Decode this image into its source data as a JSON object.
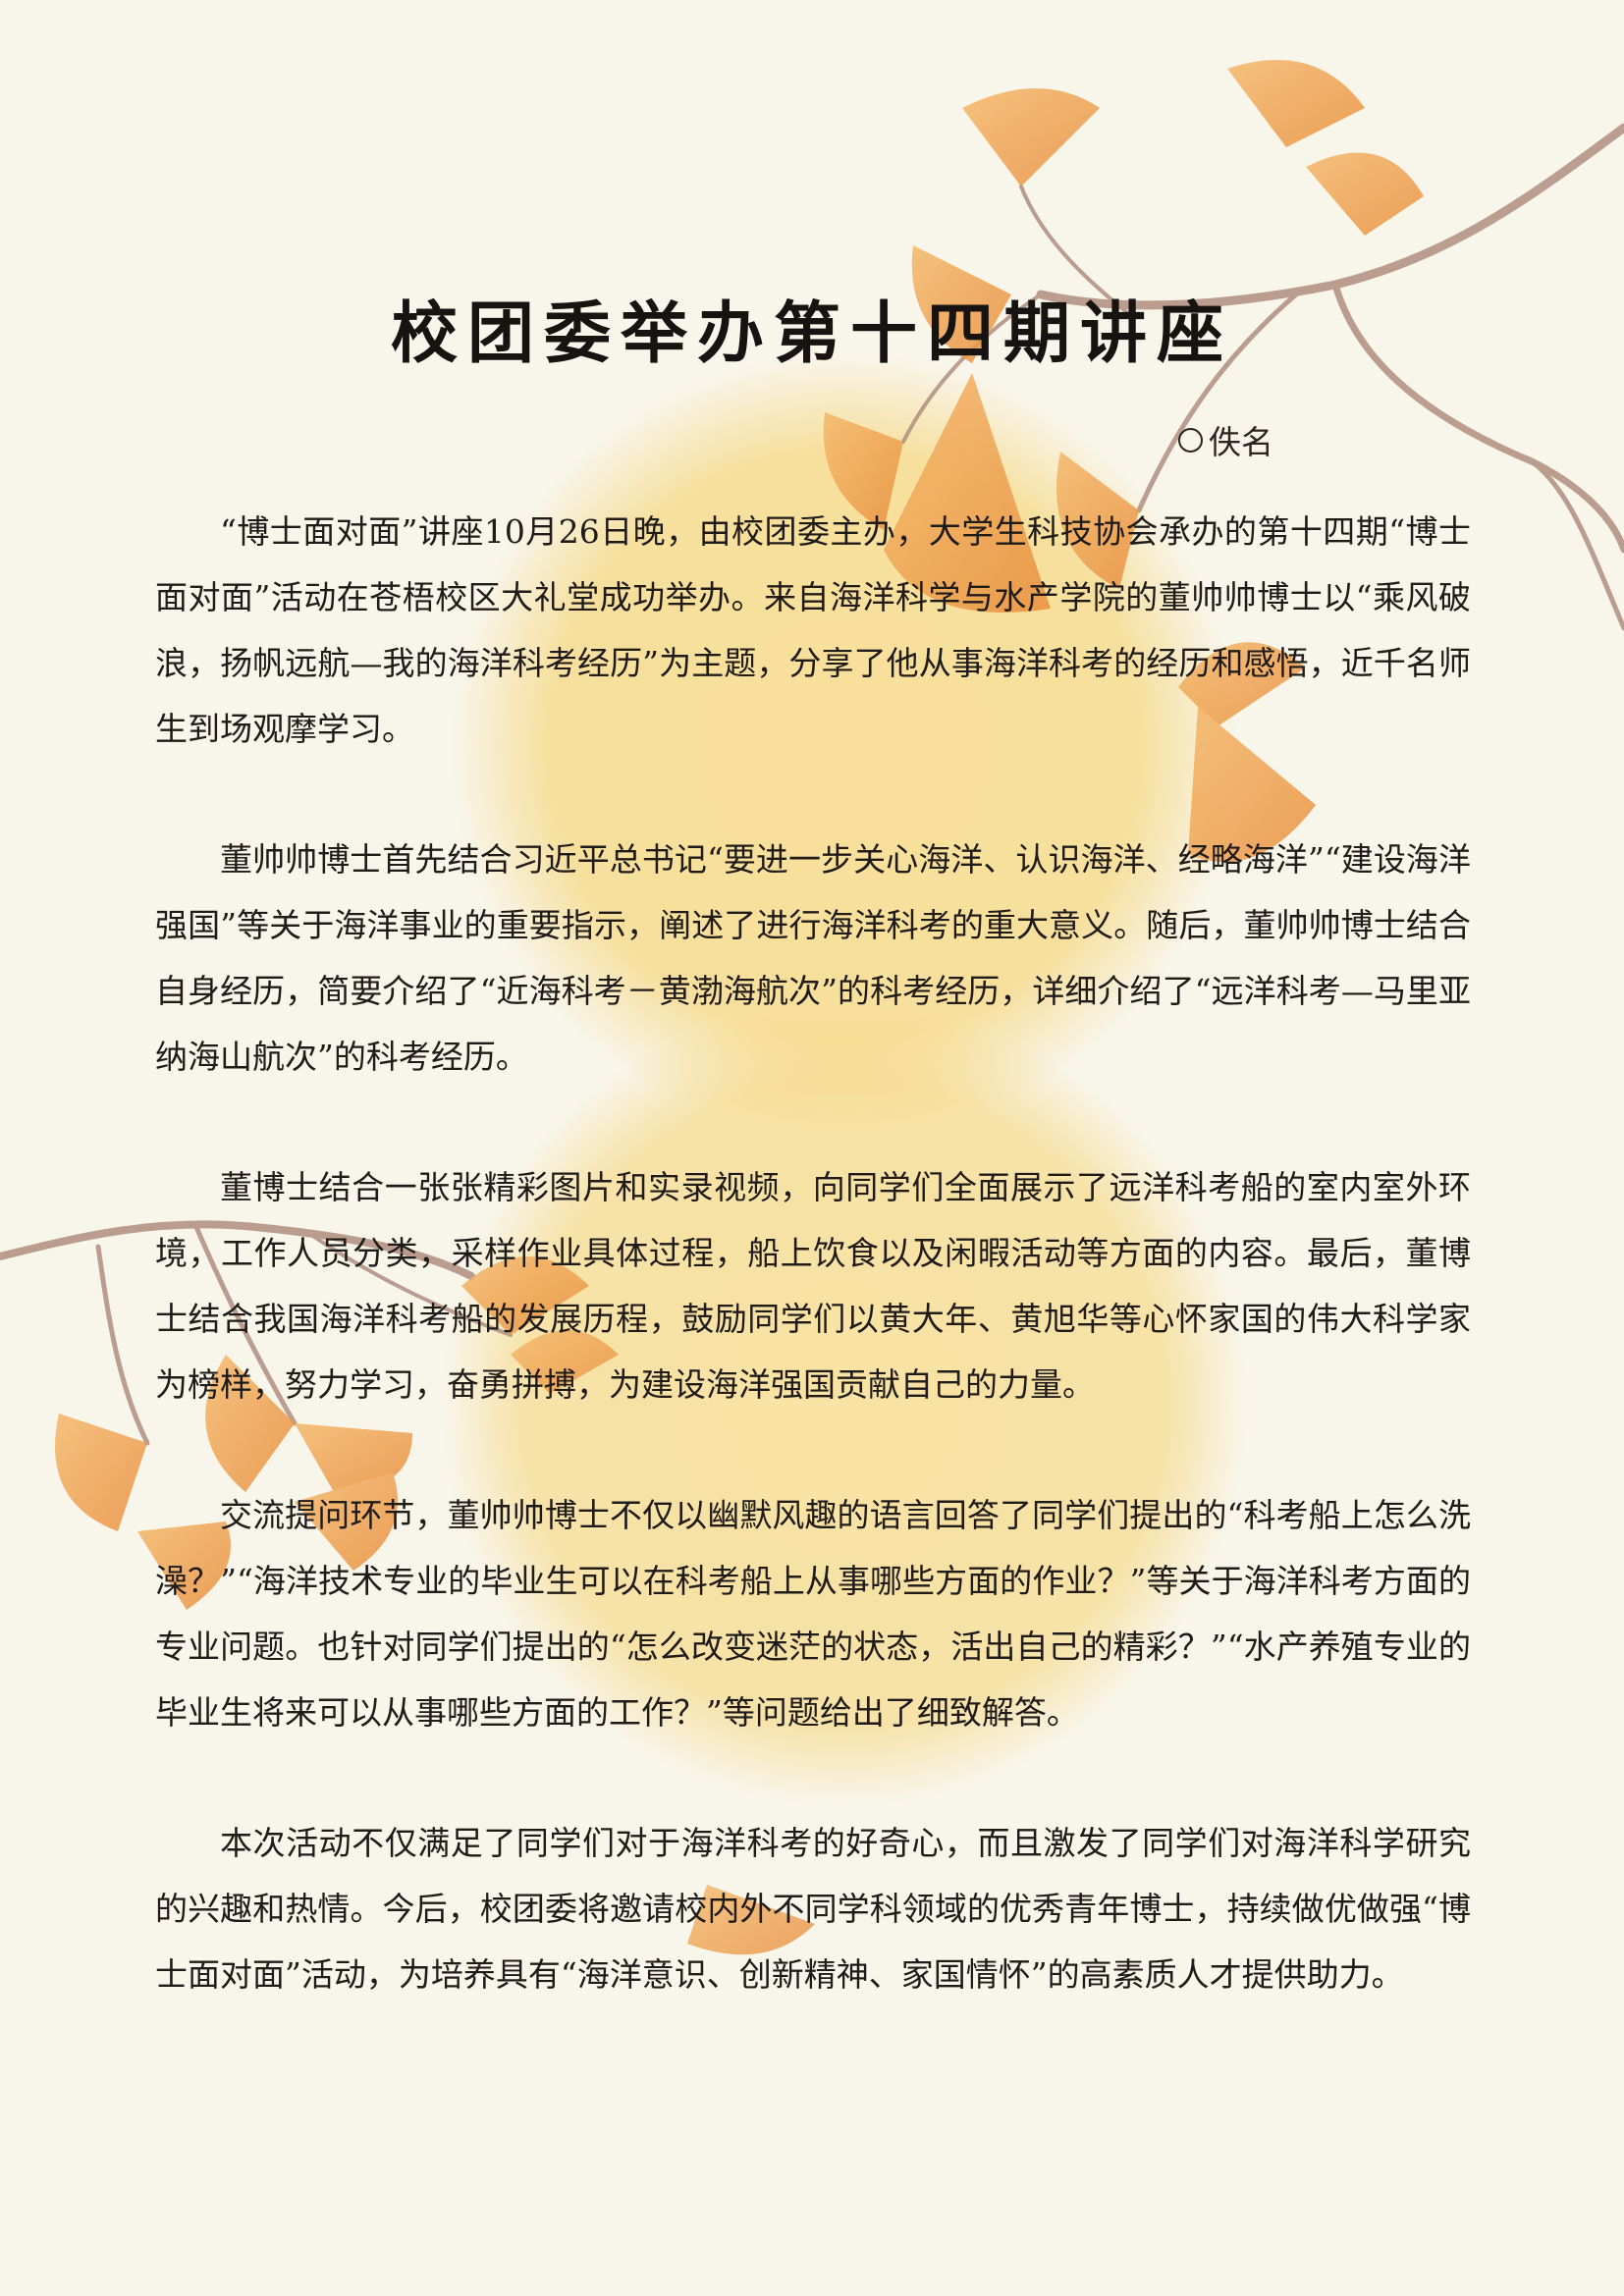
{
  "document": {
    "title": "校团委举办第十四期讲座",
    "author": "佚名",
    "author_icon": "circle-icon",
    "paragraphs": [
      "“博士面对面”讲座10月26日晚，由校团委主办，大学生科技协会承办的第十四期“博士面对面”活动在苍梧校区大礼堂成功举办。来自海洋科学与水产学院的董帅帅博士以“乘风破浪，扬帆远航—我的海洋科考经历”为主题，分享了他从事海洋科考的经历和感悟，近千名师生到场观摩学习。",
      "董帅帅博士首先结合习近平总书记“要进一步关心海洋、认识海洋、经略海洋”“建设海洋强国”等关于海洋事业的重要指示，阐述了进行海洋科考的重大意义。随后，董帅帅博士结合自身经历，简要介绍了“近海科考－黄渤海航次”的科考经历，详细介绍了“远洋科考—马里亚纳海山航次”的科考经历。",
      "董博士结合一张张精彩图片和实录视频，向同学们全面展示了远洋科考船的室内室外环境，工作人员分类，采样作业具体过程，船上饮食以及闲暇活动等方面的内容。最后，董博士结合我国海洋科考船的发展历程，鼓励同学们以黄大年、黄旭华等心怀家国的伟大科学家为榜样，努力学习，奋勇拼搏，为建设海洋强国贡献自己的力量。",
      "交流提问环节，董帅帅博士不仅以幽默风趣的语言回答了同学们提出的“科考船上怎么洗澡？”“海洋技术专业的毕业生可以在科考船上从事哪些方面的作业？”等关于海洋科考方面的专业问题。也针对同学们提出的“怎么改变迷茫的状态，活出自己的精彩？”“水产养殖专业的毕业生将来可以从事哪些方面的工作？”等问题给出了细致解答。",
      "本次活动不仅满足了同学们对于海洋科考的好奇心，而且激发了同学们对海洋科学研究的兴趣和热情。今后，校团委将邀请校内外不同学科领域的优秀青年博士，持续做优做强“博士面对面”活动，为培养具有“海洋意识、创新精神、家国情怀”的高素质人才提供助力。"
    ]
  },
  "colors": {
    "background": "#f8f5ea",
    "sun": "#f6d77e",
    "leaf": "#eea457",
    "branch": "#b08e80",
    "text": "#1f1b18"
  }
}
